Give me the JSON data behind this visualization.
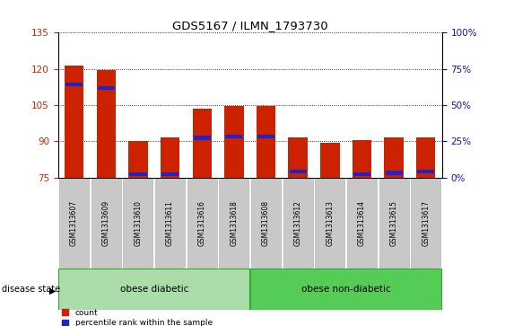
{
  "title": "GDS5167 / ILMN_1793730",
  "samples": [
    "GSM1313607",
    "GSM1313609",
    "GSM1313610",
    "GSM1313611",
    "GSM1313616",
    "GSM1313618",
    "GSM1313608",
    "GSM1313612",
    "GSM1313613",
    "GSM1313614",
    "GSM1313615",
    "GSM1313617"
  ],
  "counts": [
    121.5,
    119.5,
    90.0,
    91.5,
    103.5,
    104.5,
    104.5,
    91.5,
    89.5,
    90.5,
    91.5,
    91.5
  ],
  "percentile_positions": [
    113.5,
    112.0,
    76.5,
    76.5,
    91.5,
    92.0,
    92.0,
    77.5,
    null,
    76.5,
    77.0,
    77.5
  ],
  "bar_bottom": 75,
  "ylim_left": [
    75,
    135
  ],
  "ylim_right": [
    0,
    100
  ],
  "yticks_left": [
    75,
    90,
    105,
    120,
    135
  ],
  "yticks_right": [
    0,
    25,
    50,
    75,
    100
  ],
  "bar_color": "#cc2200",
  "percentile_color": "#2222cc",
  "groups": [
    {
      "label": "obese diabetic",
      "indices": [
        0,
        5
      ],
      "color": "#aaddaa"
    },
    {
      "label": "obese non-diabetic",
      "indices": [
        6,
        11
      ],
      "color": "#55cc55"
    }
  ],
  "disease_state_label": "disease state",
  "legend_count_label": "count",
  "legend_percentile_label": "percentile rank within the sample",
  "background_color": "#ffffff",
  "tick_label_color_left": "#cc2200",
  "tick_label_color_right": "#1111bb",
  "grid_color": "#000000",
  "xticklabel_bg": "#c8c8c8"
}
